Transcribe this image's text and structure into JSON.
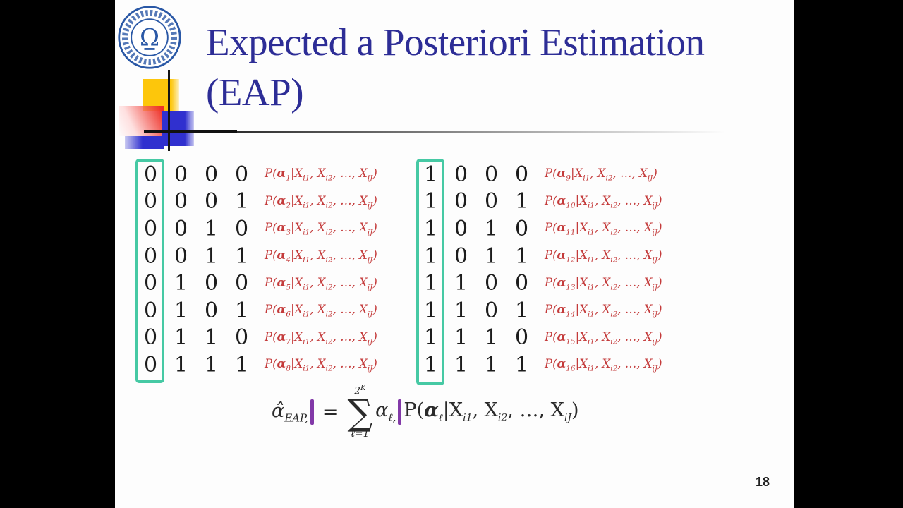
{
  "title": {
    "line1": "Expected a Posteriori Estimation",
    "line2": "(EAP)"
  },
  "page_number": "18",
  "colors": {
    "title_blue": "#2d2d96",
    "formula_red": "#c43b3b",
    "highlight_teal": "#46c9a4",
    "cursor_purple": "#8239a8",
    "logo_blue": "#2a58a6",
    "accent_yellow": "#fdc60b",
    "accent_red": "#ee3128",
    "accent_blue": "#3030cf"
  },
  "tables": {
    "left": {
      "rows": [
        {
          "bits": [
            "0",
            "0",
            "0",
            "0"
          ],
          "idx": "1"
        },
        {
          "bits": [
            "0",
            "0",
            "0",
            "1"
          ],
          "idx": "2"
        },
        {
          "bits": [
            "0",
            "0",
            "1",
            "0"
          ],
          "idx": "3"
        },
        {
          "bits": [
            "0",
            "0",
            "1",
            "1"
          ],
          "idx": "4"
        },
        {
          "bits": [
            "0",
            "1",
            "0",
            "0"
          ],
          "idx": "5"
        },
        {
          "bits": [
            "0",
            "1",
            "0",
            "1"
          ],
          "idx": "6"
        },
        {
          "bits": [
            "0",
            "1",
            "1",
            "0"
          ],
          "idx": "7"
        },
        {
          "bits": [
            "0",
            "1",
            "1",
            "1"
          ],
          "idx": "8"
        }
      ]
    },
    "right": {
      "rows": [
        {
          "bits": [
            "1",
            "0",
            "0",
            "0"
          ],
          "idx": "9"
        },
        {
          "bits": [
            "1",
            "0",
            "0",
            "1"
          ],
          "idx": "10"
        },
        {
          "bits": [
            "1",
            "0",
            "1",
            "0"
          ],
          "idx": "11"
        },
        {
          "bits": [
            "1",
            "0",
            "1",
            "1"
          ],
          "idx": "12"
        },
        {
          "bits": [
            "1",
            "1",
            "0",
            "0"
          ],
          "idx": "13"
        },
        {
          "bits": [
            "1",
            "1",
            "0",
            "1"
          ],
          "idx": "14"
        },
        {
          "bits": [
            "1",
            "1",
            "1",
            "0"
          ],
          "idx": "15"
        },
        {
          "bits": [
            "1",
            "1",
            "1",
            "1"
          ],
          "idx": "16"
        }
      ]
    }
  },
  "prob_parts": {
    "P": "P(",
    "alpha": "α",
    "pipe": "|",
    "X": "X",
    "sub1": "i1",
    "sub2": "i2",
    "dots": ", …, ",
    "subJ": "iJ",
    "sep": ", ",
    "close": ")"
  },
  "formula": {
    "alpha_hat": "α̂",
    "lhs_sub": "EAP,",
    "equals": "=",
    "sum_top_base": "2",
    "sum_top_exp": "K",
    "sigma": "∑",
    "sum_bottom": "ℓ=1",
    "alpha": "α",
    "alpha_sub": "ℓ,",
    "prob_idx": "ℓ"
  }
}
